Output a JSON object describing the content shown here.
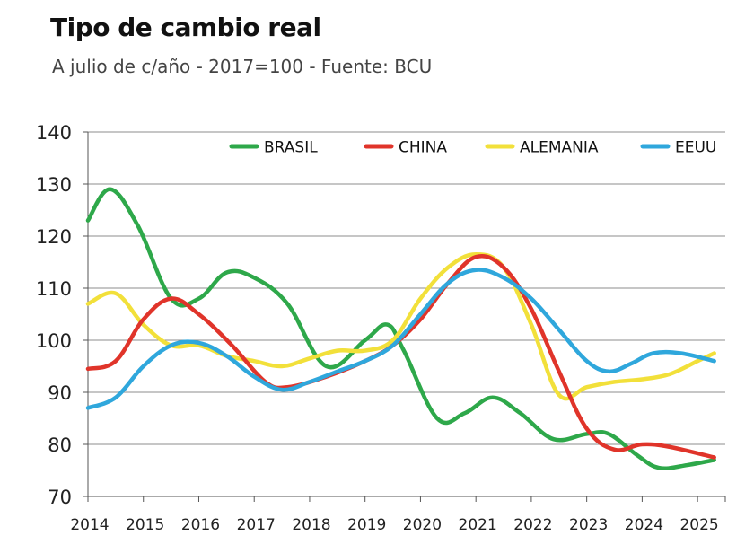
{
  "chart_data": {
    "type": "line",
    "title": "Tipo de cambio real",
    "subtitle": "A julio de c/año - 2017=100 - Fuente: BCU",
    "xlabel": "",
    "ylabel": "",
    "ylim": [
      70,
      140
    ],
    "yticks": [
      "70",
      "80",
      "90",
      "100",
      "110",
      "120",
      "130",
      "140"
    ],
    "categories": [
      "2014",
      "2015",
      "2016",
      "2017",
      "2018",
      "2019",
      "2020",
      "2021",
      "2022",
      "2023",
      "2024",
      "2025"
    ],
    "grid": true,
    "legend_position": "top",
    "series": [
      {
        "name": "BRASIL",
        "color": "#2ea84a",
        "x": [
          2014.0,
          2014.4,
          2014.9,
          2015.5,
          2016.0,
          2016.5,
          2017.0,
          2017.6,
          2018.3,
          2019.0,
          2019.4,
          2019.7,
          2020.3,
          2020.8,
          2021.3,
          2021.8,
          2022.4,
          2023.0,
          2023.4,
          2023.9,
          2024.3,
          2024.8,
          2025.3
        ],
        "values": [
          123,
          129,
          122,
          108,
          108,
          113,
          112,
          107,
          95,
          100,
          103,
          98,
          85,
          86,
          89,
          86,
          81,
          82,
          82,
          78,
          75.5,
          76,
          77
        ]
      },
      {
        "name": "CHINA",
        "color": "#e0342a",
        "x": [
          2014.0,
          2014.5,
          2015.0,
          2015.5,
          2016.0,
          2016.6,
          2017.2,
          2017.6,
          2018.3,
          2019.0,
          2019.5,
          2020.0,
          2020.5,
          2021.0,
          2021.5,
          2022.0,
          2022.5,
          2023.0,
          2023.5,
          2024.0,
          2024.5,
          2025.3
        ],
        "values": [
          94.5,
          96,
          104,
          108,
          105,
          99,
          92,
          91,
          93,
          96,
          99,
          104,
          111,
          116,
          114,
          106,
          94,
          83,
          79,
          80,
          79.5,
          77.5
        ]
      },
      {
        "name": "ALEMANIA",
        "color": "#f2e03a",
        "x": [
          2014.0,
          2014.5,
          2015.0,
          2015.5,
          2016.0,
          2016.5,
          2017.0,
          2017.5,
          2018.0,
          2018.5,
          2019.0,
          2019.5,
          2020.0,
          2020.5,
          2021.0,
          2021.5,
          2022.0,
          2022.5,
          2023.0,
          2023.5,
          2024.0,
          2024.5,
          2025.0,
          2025.3
        ],
        "values": [
          107,
          109,
          103,
          99,
          99,
          97,
          96,
          95,
          96.5,
          98,
          98,
          100,
          108,
          114,
          116.5,
          114,
          103,
          89.5,
          91,
          92,
          92.5,
          93.5,
          96,
          97.5
        ]
      },
      {
        "name": "EEUU",
        "color": "#2fa7dc",
        "x": [
          2014.0,
          2014.5,
          2015.0,
          2015.5,
          2016.0,
          2016.5,
          2017.0,
          2017.5,
          2018.0,
          2018.5,
          2019.0,
          2019.5,
          2020.0,
          2020.5,
          2021.0,
          2021.5,
          2022.0,
          2022.5,
          2023.0,
          2023.4,
          2023.8,
          2024.2,
          2024.7,
          2025.3
        ],
        "values": [
          87,
          89,
          95,
          99,
          99.5,
          97,
          93,
          90.5,
          92,
          94,
          96,
          99,
          105,
          111,
          113.5,
          112,
          108,
          102,
          96,
          94,
          95.5,
          97.5,
          97.5,
          96
        ]
      }
    ]
  }
}
